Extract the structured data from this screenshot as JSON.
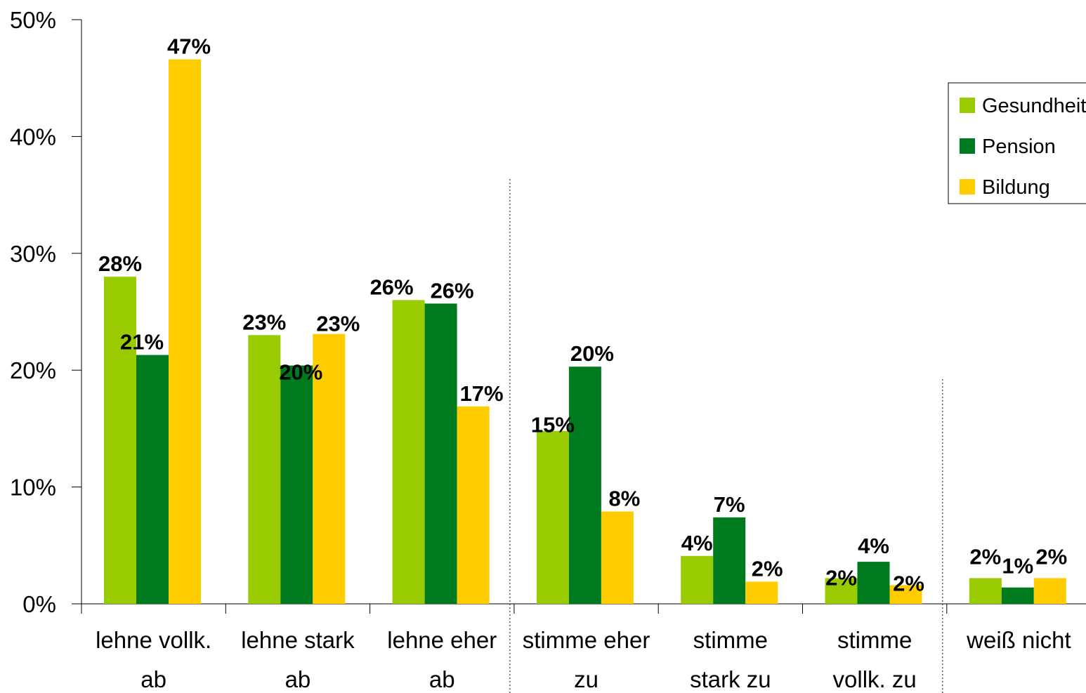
{
  "chart_data": {
    "type": "bar",
    "categories": [
      [
        "lehne vollk.",
        "ab"
      ],
      [
        "lehne stark",
        "ab"
      ],
      [
        "lehne eher",
        "ab"
      ],
      [
        "stimme eher",
        "zu"
      ],
      [
        "stimme",
        "stark zu"
      ],
      [
        "stimme",
        "vollk. zu"
      ],
      [
        "weiß nicht",
        ""
      ]
    ],
    "series": [
      {
        "name": "Gesundheit",
        "color": "#99CC00",
        "values": [
          28,
          23,
          26,
          14.8,
          4.1,
          2.2,
          2.2
        ],
        "labels": [
          "28%",
          "23%",
          "26%",
          "15%",
          "4%",
          "2%",
          "2%"
        ]
      },
      {
        "name": "Pension",
        "color": "#007A1E",
        "values": [
          21.3,
          20.4,
          25.7,
          20.3,
          7.4,
          3.6,
          1.4
        ],
        "labels": [
          "21%",
          "20%",
          "26%",
          "20%",
          "7%",
          "4%",
          "1%"
        ]
      },
      {
        "name": "Bildung",
        "color": "#FFCC00",
        "values": [
          46.6,
          23.1,
          16.9,
          7.9,
          1.9,
          1.6,
          2.2
        ],
        "labels": [
          "47%",
          "23%",
          "17%",
          "8%",
          "2%",
          "2%",
          "2%"
        ]
      }
    ],
    "ylim": [
      0,
      50
    ],
    "yticks": [
      "0%",
      "10%",
      "20%",
      "30%",
      "40%",
      "50%"
    ],
    "legend": "right",
    "grid": false,
    "separators_after_category": [
      3,
      6
    ]
  }
}
